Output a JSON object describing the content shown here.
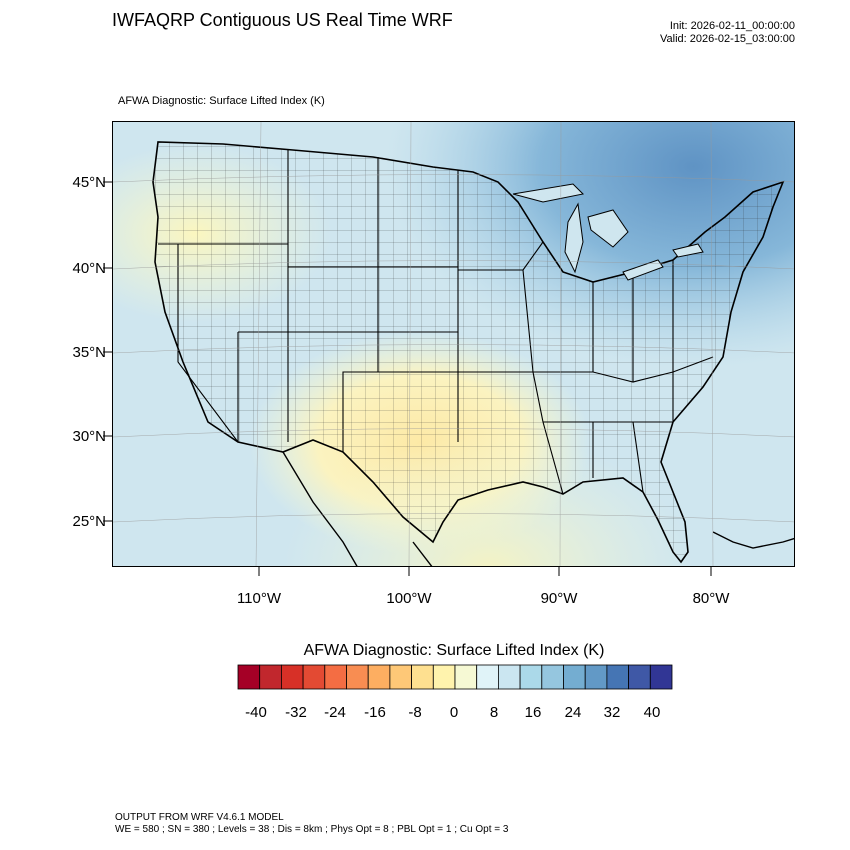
{
  "header": {
    "title": "IWFAQRP Contiguous US Real Time WRF",
    "init_line": "Init: 2026-02-11_00:00:00",
    "valid_line": "Valid: 2026-02-15_03:00:00"
  },
  "map": {
    "subtitle": "AFWA Diagnostic: Surface Lifted Index   (K)",
    "lat_labels": [
      "45°N",
      "40°N",
      "35°N",
      "30°N",
      "25°N"
    ],
    "lon_labels": [
      "110°W",
      "100°W",
      "90°W",
      "80°W"
    ]
  },
  "colorbar": {
    "title": "AFWA Diagnostic: Surface Lifted Index  (K)",
    "tick_labels": [
      "-40",
      "-32",
      "-24",
      "-16",
      "-8",
      "0",
      "8",
      "16",
      "24",
      "32",
      "40"
    ],
    "colors": [
      "#a50026",
      "#c1272d",
      "#d73027",
      "#e34a33",
      "#f46d43",
      "#f88d52",
      "#fdae61",
      "#fec877",
      "#fee090",
      "#fff3ad",
      "#f6f9d4",
      "#e0f3f8",
      "#cbe6f1",
      "#abd9e9",
      "#95c6df",
      "#74add1",
      "#6299c6",
      "#4575b4",
      "#3f58a6",
      "#313695"
    ]
  },
  "footer": {
    "line1": "OUTPUT FROM WRF V4.6.1 MODEL",
    "line2": "WE = 580 ; SN = 380 ; Levels = 38 ; Dis = 8km ; Phys Opt = 8 ; PBL Opt = 1 ; Cu Opt = 3"
  }
}
